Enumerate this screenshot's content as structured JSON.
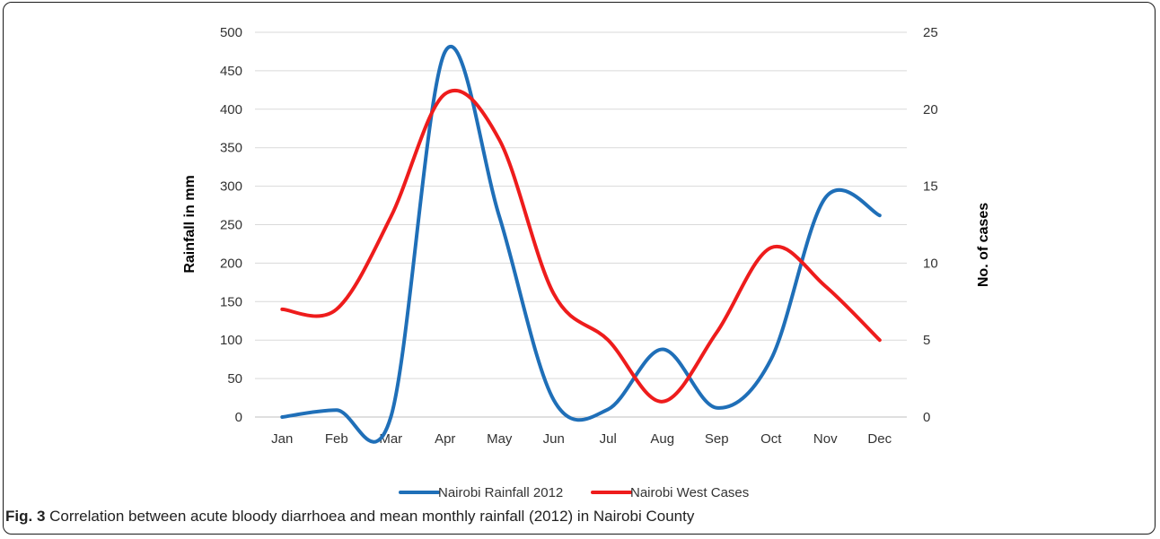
{
  "caption": {
    "label": "Fig. 3",
    "text": " Correlation between acute bloody diarrhoea and mean monthly rainfall (2012) in Nairobi County"
  },
  "chart_data": {
    "type": "line",
    "categories": [
      "Jan",
      "Feb",
      "Mar",
      "Apr",
      "May",
      "Jun",
      "Jul",
      "Aug",
      "Sep",
      "Oct",
      "Nov",
      "Dec"
    ],
    "y_left": {
      "label": "Rainfall in mm",
      "range": [
        0,
        500
      ],
      "ticks": [
        0,
        50,
        100,
        150,
        200,
        250,
        300,
        350,
        400,
        450,
        500
      ]
    },
    "y_right": {
      "label": "No. of cases",
      "range": [
        0,
        25
      ],
      "ticks": [
        0,
        5,
        10,
        15,
        20,
        25
      ]
    },
    "grid": true,
    "smooth": true,
    "legend_position": "bottom",
    "series": [
      {
        "name": "Nairobi Rainfall 2012",
        "axis": "left",
        "color": "#1f6fb8",
        "values": [
          0,
          9,
          0,
          475,
          260,
          22,
          10,
          88,
          12,
          75,
          285,
          262
        ]
      },
      {
        "name": "Nairobi West Cases",
        "axis": "right",
        "color": "#ee1c1c",
        "values": [
          7,
          7,
          13,
          21,
          18,
          8,
          5,
          1,
          5.5,
          11,
          8.5,
          5
        ]
      }
    ]
  }
}
